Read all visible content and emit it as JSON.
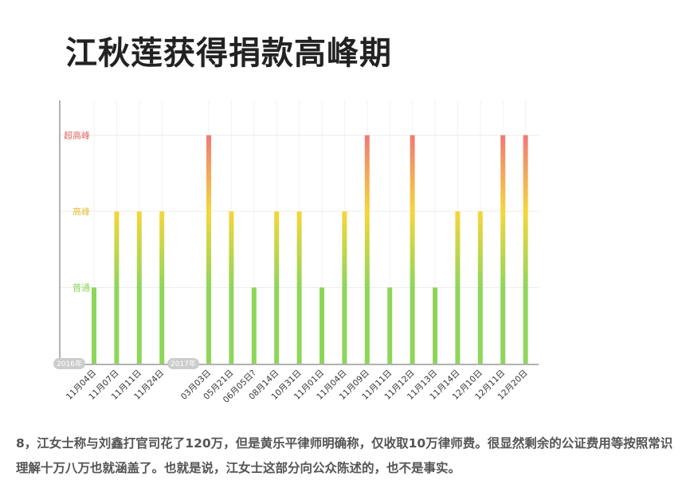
{
  "title": "江秋莲获得捐款高峰期",
  "caption": "8，江女士称与刘鑫打官司花了120万，但是黄乐平律师明确称，仅收取10万律师费。很显然剩余的公证费用等按照常识理解十万八万也就涵盖了。也就是说，江女士这部分向公众陈述的，也不是事实。",
  "colors": {
    "low": "#8ed65a",
    "mid": "#f5d63c",
    "high": "#f07878",
    "label_low": "#8ed65a",
    "label_mid": "#e8c040",
    "label_high": "#e06a6a",
    "badge": "#cccccc",
    "axis": "#999999",
    "grid": "#eeeeee"
  },
  "chart_data": {
    "type": "bar",
    "title": "",
    "xlabel": "",
    "ylabel": "",
    "y_levels": [
      "普通",
      "高峰",
      "超高峰"
    ],
    "ylim": [
      0,
      3
    ],
    "grid": true,
    "groups": [
      {
        "year": "2016年",
        "categories": [
          "11月04日",
          "11月07日",
          "11月11日",
          "11月24日"
        ],
        "values": [
          1,
          2,
          2,
          2
        ]
      },
      {
        "year": "2017年",
        "categories": [
          "03月03日",
          "05月21日",
          "06月05日?",
          "08月14日",
          "10月31日",
          "11月01日",
          "11月04日",
          "11月09日",
          "11月11日",
          "11月12日",
          "11月13日",
          "11月14日",
          "12月10日",
          "12月11日",
          "12月20日"
        ],
        "values": [
          3,
          2,
          1,
          2,
          2,
          1,
          2,
          3,
          1,
          3,
          1,
          2,
          2,
          3,
          3
        ]
      }
    ]
  }
}
